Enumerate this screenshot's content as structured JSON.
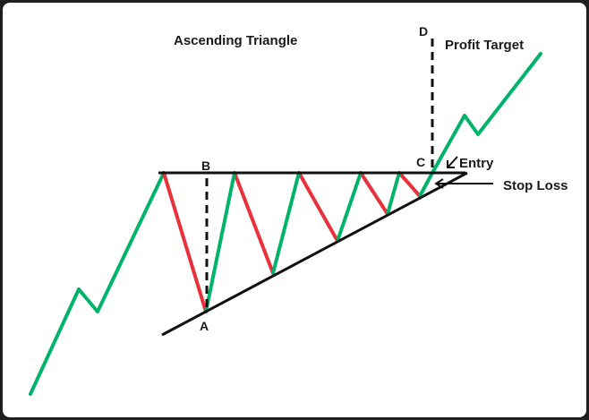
{
  "diagram": {
    "title": "Ascending Triangle",
    "labels": {
      "point_a": "A",
      "point_b": "B",
      "point_c": "C",
      "point_d": "D",
      "profit_target": "Profit Target",
      "entry": "Entry",
      "stop_loss": "Stop Loss"
    },
    "colors": {
      "up_leg": "#00b36b",
      "down_leg": "#e8313a",
      "trendlines": "#111111",
      "text": "#1a1a1a"
    }
  }
}
